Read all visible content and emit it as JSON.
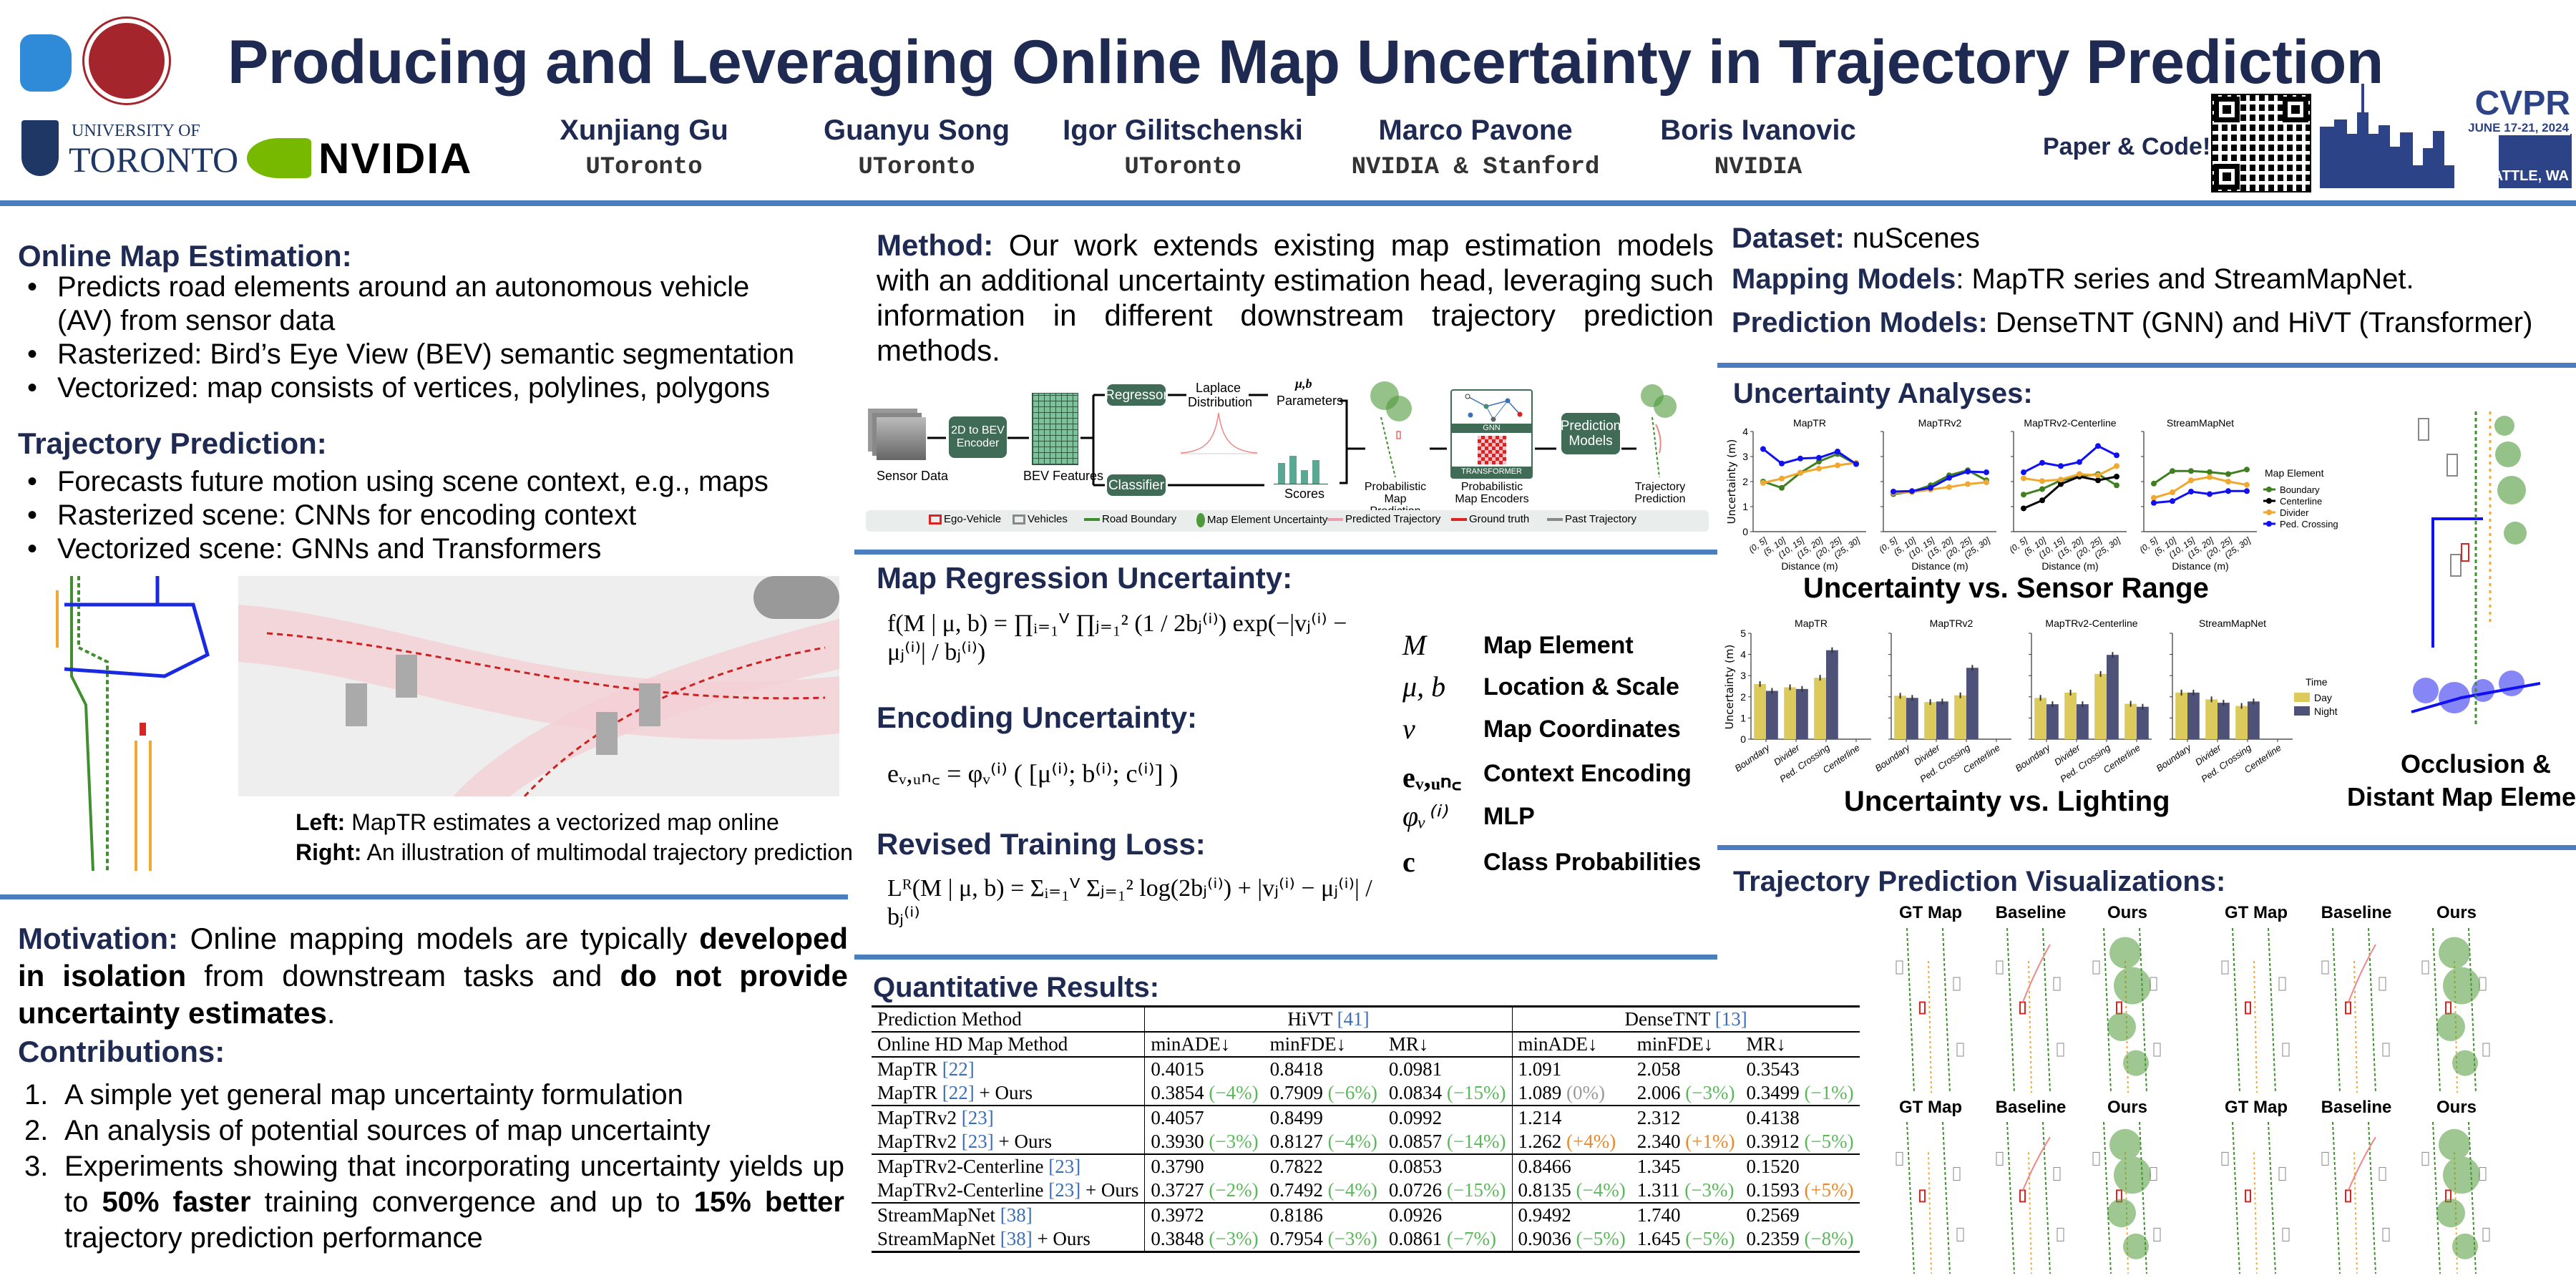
{
  "header": {
    "title": "Producing and Leveraging Online Map Uncertainty in Trajectory Prediction",
    "paper_code": "Paper & Code!",
    "logos": {
      "toronto": "UNIVERSITY OF TORONTO",
      "toronto_line1": "UNIVERSITY OF",
      "toronto_line2": "TORONTO",
      "nvidia": "NVIDIA",
      "cvpr": "CVPR",
      "cvpr_dates": "JUNE 17-21, 2024",
      "cvpr_place": "SEATTLE, WA"
    },
    "authors": [
      {
        "name": "Xunjiang Gu",
        "affil": "UToronto"
      },
      {
        "name": "Guanyu Song",
        "affil": "UToronto"
      },
      {
        "name": "Igor Gilitschenski",
        "affil": "UToronto"
      },
      {
        "name": "Marco Pavone",
        "affil": "NVIDIA & Stanford"
      },
      {
        "name": "Boris Ivanovic",
        "affil": "NVIDIA"
      }
    ]
  },
  "left": {
    "ome": {
      "heading": "Online Map Estimation:",
      "bullets": [
        "Predicts road elements around an autonomous vehicle",
        "(AV) from sensor data",
        "Rasterized: Bird’s Eye View (BEV) semantic segmentation",
        "Vectorized: map consists of vertices, polylines, polygons"
      ]
    },
    "tp": {
      "heading": "Trajectory Prediction:",
      "bullets": [
        "Forecasts future motion using scene context, e.g., maps",
        "Rasterized scene: CNNs for encoding context",
        "Vectorized scene: GNNs and Transformers"
      ]
    },
    "caption": {
      "left_label": "Left:",
      "left_text": " MapTR estimates a vectorized map online",
      "right_label": "Right:",
      "right_text": " An illustration of multimodal trajectory prediction"
    },
    "motivation": {
      "heading": "Motivation:",
      "t1": " Online mapping models are typically ",
      "b1": "developed in isolation",
      "t2": " from downstream tasks and ",
      "b2": "do not provide uncertainty estimates",
      "t3": "."
    },
    "contributions": {
      "heading": "Contributions:",
      "items": [
        {
          "num": "1.",
          "text": "A simple yet general map uncertainty formulation"
        },
        {
          "num": "2.",
          "text": "An analysis of potential sources of map uncertainty"
        },
        {
          "num": "3.",
          "t1": "Experiments showing that incorporating uncertainty yields up to ",
          "b1": "50% faster",
          "t2": " training convergence and up to ",
          "b2": "15% better",
          "t3": " trajectory prediction performance"
        }
      ]
    }
  },
  "middle": {
    "method": {
      "heading": "Method:",
      "text": " Our work extends existing map estimation models with an additional uncertainty estimation head, leveraging such information in different downstream trajectory prediction methods."
    },
    "diagram": {
      "sensor_data": "Sensor Data",
      "encoder": "2D to BEV Encoder",
      "bev_features": "BEV Features",
      "regressor": "Regressor",
      "classifier": "Classifier",
      "laplace": "Laplace Distribution",
      "params_symbol": "μ,b",
      "params": "Parameters",
      "scores": "Scores",
      "prob_map_pred": "Probabilistic Map Prediction",
      "gnn": "GNN",
      "transformer": "TRANSFORMER",
      "prob_map_enc": "Probabilistic Map Encoders",
      "pred_models": "Prediction Models",
      "traj_pred": "Trajectory Prediction",
      "legend": [
        "Ego-Vehicle",
        "Vehicles",
        "Road Boundary",
        "Map Element Uncertainty",
        "Predicted Trajectory",
        "Ground truth",
        "Past Trajectory"
      ]
    },
    "mru": {
      "heading": "Map Regression Uncertainty:",
      "eq": "f(M | μ, b) = ∏ᵢ₌₁ⱽ ∏ⱼ₌₁² (1 / 2bⱼ⁽ⁱ⁾) exp(−|vⱼ⁽ⁱ⁾ − μⱼ⁽ⁱ⁾| / bⱼ⁽ⁱ⁾)"
    },
    "enc": {
      "heading": "Encoding Uncertainty:",
      "eq": "eᵥ,ᵤₙ꜀ = φᵥ⁽ⁱ⁾ ( [μ⁽ⁱ⁾; b⁽ⁱ⁾; c⁽ⁱ⁾] )"
    },
    "loss": {
      "heading": "Revised Training Loss:",
      "eq": "Lᴿ(M | μ, b) = Σᵢ₌₁ⱽ Σⱼ₌₁² log(2bⱼ⁽ⁱ⁾) + |vⱼ⁽ⁱ⁾ − μⱼ⁽ⁱ⁾| / bⱼ⁽ⁱ⁾"
    },
    "symbols": [
      {
        "sym": "M",
        "label": "Map Element"
      },
      {
        "sym": "μ, b",
        "label": "Location & Scale"
      },
      {
        "sym": "v",
        "label": "Map Coordinates"
      },
      {
        "sym": "eᵥ,ᵤₙ꜀",
        "label": "Context Encoding"
      },
      {
        "sym": "φᵥ⁽ⁱ⁾",
        "label": "MLP"
      },
      {
        "sym": "c",
        "label": "Class Probabilities"
      }
    ],
    "results": {
      "heading": "Quantitative Results:",
      "pred_method": "Prediction Method",
      "map_method": "Online HD Map Method",
      "groups": [
        {
          "name": "HiVT",
          "ref": "[41]"
        },
        {
          "name": "DenseTNT",
          "ref": "[13]"
        }
      ],
      "metrics": [
        "minADE↓",
        "minFDE↓",
        "MR↓",
        "minADE↓",
        "minFDE↓",
        "MR↓"
      ],
      "ours_suffix": " + Ours",
      "rows": [
        [
          {
            "name": "MapTR",
            "ref": "[22]",
            "ours": false,
            "vals": [
              "0.4015",
              "0.8418",
              "0.0981",
              "1.091",
              "2.058",
              "0.3543"
            ]
          },
          {
            "name": "MapTR",
            "ref": "[22]",
            "ours": true,
            "vals": [
              "0.3854",
              "0.7909",
              "0.0834",
              "1.089",
              "2.006",
              "0.3499"
            ],
            "deltas": [
              "(−4%)",
              "(−6%)",
              "(−15%)",
              "(0%)",
              "(−3%)",
              "(−1%)"
            ]
          }
        ],
        [
          {
            "name": "MapTRv2",
            "ref": "[23]",
            "ours": false,
            "vals": [
              "0.4057",
              "0.8499",
              "0.0992",
              "1.214",
              "2.312",
              "0.4138"
            ]
          },
          {
            "name": "MapTRv2",
            "ref": "[23]",
            "ours": true,
            "vals": [
              "0.3930",
              "0.8127",
              "0.0857",
              "1.262",
              "2.340",
              "0.3912"
            ],
            "deltas": [
              "(−3%)",
              "(−4%)",
              "(−14%)",
              "(+4%)",
              "(+1%)",
              "(−5%)"
            ]
          }
        ],
        [
          {
            "name": "MapTRv2-Centerline",
            "ref": "[23]",
            "ours": false,
            "vals": [
              "0.3790",
              "0.7822",
              "0.0853",
              "0.8466",
              "1.345",
              "0.1520"
            ]
          },
          {
            "name": "MapTRv2-Centerline",
            "ref": "[23]",
            "ours": true,
            "vals": [
              "0.3727",
              "0.7492",
              "0.0726",
              "0.8135",
              "1.311",
              "0.1593"
            ],
            "deltas": [
              "(−2%)",
              "(−4%)",
              "(−15%)",
              "(−4%)",
              "(−3%)",
              "(+5%)"
            ]
          }
        ],
        [
          {
            "name": "StreamMapNet",
            "ref": "[38]",
            "ours": false,
            "vals": [
              "0.3972",
              "0.8186",
              "0.0926",
              "0.9492",
              "1.740",
              "0.2569"
            ]
          },
          {
            "name": "StreamMapNet",
            "ref": "[38]",
            "ours": true,
            "vals": [
              "0.3848",
              "0.7954",
              "0.0861",
              "0.9036",
              "1.645",
              "0.2359"
            ],
            "deltas": [
              "(−3%)",
              "(−3%)",
              "(−7%)",
              "(−5%)",
              "(−5%)",
              "(−8%)"
            ]
          }
        ]
      ],
      "colors": {
        "better": "#5cb85c",
        "worse": "#e8892b",
        "neutral": "#999999",
        "ref": "#3b6fb6"
      }
    }
  },
  "right": {
    "dataset_label": "Dataset:",
    "dataset": " nuScenes",
    "mapping_label": "Mapping Models",
    "mapping": ": MapTR series and StreamMapNet.",
    "prediction_label": "Prediction Models:",
    "prediction": " DenseTNT (GNN) and HiVT (Transformer)",
    "analyses_heading": "Uncertainty Analyses:",
    "range_caption": "Uncertainty vs. Sensor Range",
    "lighting_caption": "Uncertainty vs. Lighting",
    "occlusion_caption_1": "Occlusion &",
    "occlusion_caption_2": "Distant Map Elements",
    "vis_heading": "Trajectory Prediction Visualizations:",
    "vis_labels": [
      "GT Map",
      "Baseline",
      "Ours"
    ]
  },
  "chart_data": [
    {
      "type": "line",
      "title": "Uncertainty vs. Sensor Range",
      "ylabel": "Uncertainty (m)",
      "xlabel": "Distance (m)",
      "ylim": [
        0,
        4
      ],
      "yticks": [
        "0",
        "1",
        "2",
        "3",
        "4"
      ],
      "categories": [
        "(0, 5]",
        "(5, 10]",
        "(10, 15]",
        "(15, 20]",
        "(20, 25]",
        "(25, 30]"
      ],
      "legend_title": "Map Element",
      "legend": [
        {
          "name": "Boundary",
          "color": "#3f7f1f"
        },
        {
          "name": "Centerline",
          "color": "#000000"
        },
        {
          "name": "Divider",
          "color": "#f0a830"
        },
        {
          "name": "Ped. Crossing",
          "color": "#1010f0"
        }
      ],
      "panels": [
        {
          "title": "MapTR",
          "series": [
            {
              "name": "Boundary",
              "values": [
                2.0,
                1.75,
                2.35,
                2.8,
                3.1,
                2.7
              ]
            },
            {
              "name": "Divider",
              "values": [
                1.95,
                2.12,
                2.35,
                2.52,
                2.65,
                2.75
              ]
            },
            {
              "name": "Ped. Crossing",
              "values": [
                3.3,
                2.72,
                2.92,
                2.95,
                3.2,
                2.7
              ]
            }
          ]
        },
        {
          "title": "MapTRv2",
          "series": [
            {
              "name": "Boundary",
              "values": [
                1.5,
                1.6,
                1.85,
                2.25,
                2.45,
                2.05
              ]
            },
            {
              "name": "Divider",
              "values": [
                1.55,
                1.58,
                1.68,
                1.78,
                1.9,
                1.97
              ]
            },
            {
              "name": "Ped. Crossing",
              "values": [
                1.6,
                1.62,
                1.75,
                2.15,
                2.4,
                2.37
              ]
            }
          ]
        },
        {
          "title": "MapTRv2-Centerline",
          "series": [
            {
              "name": "Boundary",
              "values": [
                1.48,
                1.7,
                2.05,
                2.2,
                2.3,
                1.85
              ]
            },
            {
              "name": "Centerline",
              "values": [
                0.93,
                1.25,
                1.9,
                2.2,
                2.05,
                2.2
              ]
            },
            {
              "name": "Divider",
              "values": [
                2.13,
                2.02,
                2.08,
                2.3,
                2.25,
                2.62
              ]
            },
            {
              "name": "Ped. Crossing",
              "values": [
                2.37,
                2.75,
                2.62,
                2.78,
                3.42,
                3.05
              ]
            }
          ]
        },
        {
          "title": "StreamMapNet",
          "series": [
            {
              "name": "Boundary",
              "values": [
                1.92,
                2.42,
                2.42,
                2.38,
                2.3,
                2.48
              ]
            },
            {
              "name": "Divider",
              "values": [
                1.35,
                1.57,
                2.05,
                2.18,
                2.0,
                1.87
              ]
            },
            {
              "name": "Ped. Crossing",
              "values": [
                1.15,
                1.22,
                1.6,
                1.5,
                1.62,
                1.62
              ]
            }
          ]
        }
      ]
    },
    {
      "type": "bar",
      "title": "Uncertainty vs. Lighting",
      "ylabel": "Uncertainty (m)",
      "ylim": [
        0,
        5
      ],
      "yticks": [
        "0",
        "1",
        "2",
        "3",
        "4",
        "5"
      ],
      "categories": [
        "Boundary",
        "Divider",
        "Ped. Crossing",
        "Centerline"
      ],
      "legend_title": "Time",
      "legend": [
        {
          "name": "Day",
          "color": "#dccb5c"
        },
        {
          "name": "Night",
          "color": "#4f5278"
        }
      ],
      "panels": [
        {
          "title": "MapTR",
          "day": [
            2.6,
            2.45,
            2.9,
            null
          ],
          "night": [
            2.28,
            2.37,
            4.2,
            null
          ]
        },
        {
          "title": "MapTRv2",
          "day": [
            2.05,
            1.75,
            2.07,
            null
          ],
          "night": [
            1.95,
            1.78,
            3.37,
            null
          ]
        },
        {
          "title": "MapTRv2-Centerline",
          "day": [
            1.95,
            2.2,
            3.08,
            1.67
          ],
          "night": [
            1.65,
            1.65,
            3.98,
            1.53
          ]
        },
        {
          "title": "StreamMapNet",
          "day": [
            2.2,
            1.88,
            1.57,
            null
          ],
          "night": [
            2.2,
            1.72,
            1.78,
            null
          ]
        }
      ]
    }
  ]
}
